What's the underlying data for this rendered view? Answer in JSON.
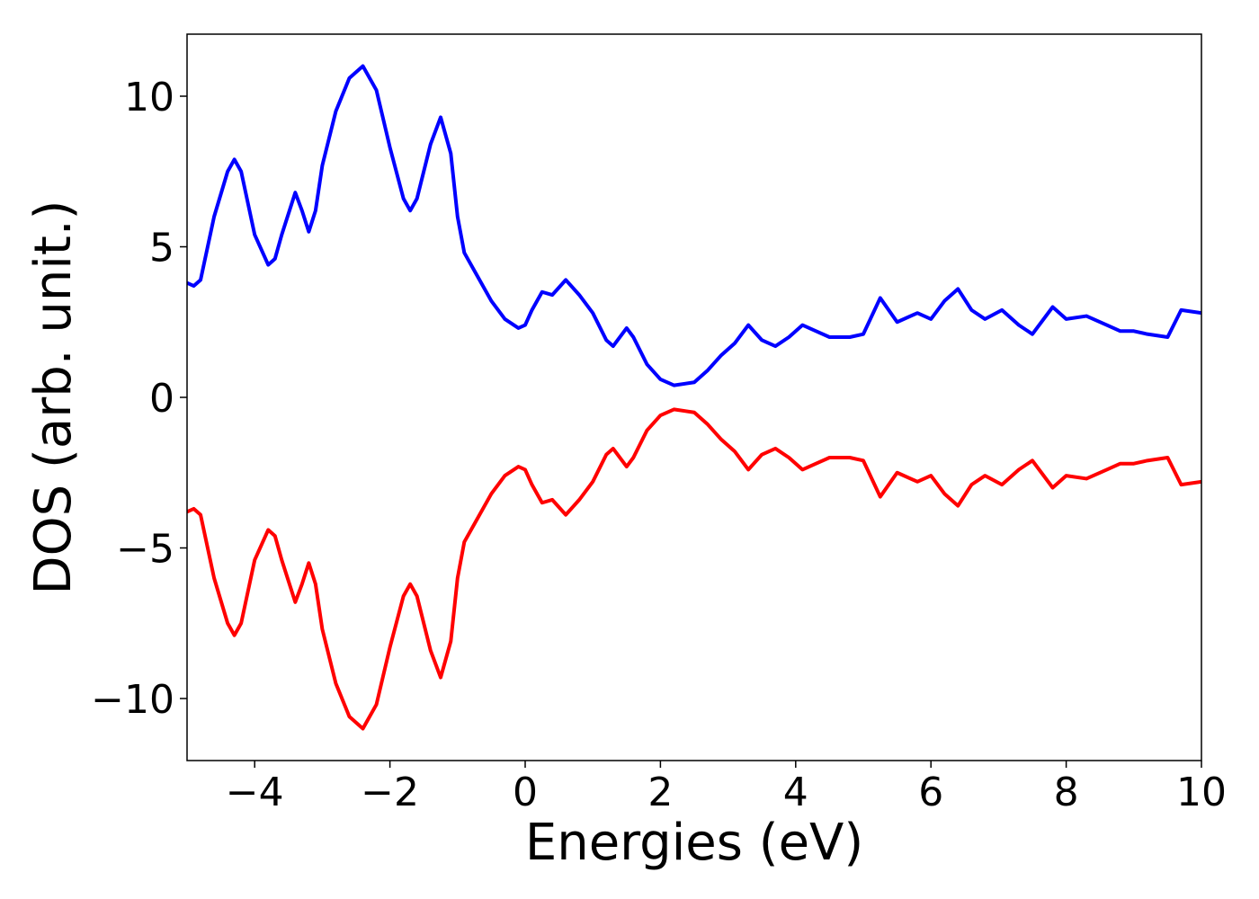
{
  "chart_data": {
    "type": "line",
    "xlabel": "Energies (eV)",
    "ylabel": "DOS (arb. unit.)",
    "x": [
      -5,
      -4.9,
      -4.8,
      -4.6,
      -4.4,
      -4.3,
      -4.2,
      -4.0,
      -3.8,
      -3.7,
      -3.6,
      -3.4,
      -3.3,
      -3.2,
      -3.1,
      -3.0,
      -2.8,
      -2.6,
      -2.4,
      -2.2,
      -2.0,
      -1.8,
      -1.7,
      -1.6,
      -1.4,
      -1.25,
      -1.1,
      -1.0,
      -0.9,
      -0.7,
      -0.5,
      -0.3,
      -0.1,
      0,
      0.1,
      0.25,
      0.4,
      0.6,
      0.8,
      1.0,
      1.2,
      1.3,
      1.5,
      1.6,
      1.8,
      2.0,
      2.2,
      2.5,
      2.7,
      2.9,
      3.1,
      3.3,
      3.5,
      3.7,
      3.9,
      4.1,
      4.3,
      4.5,
      4.8,
      5.0,
      5.25,
      5.5,
      5.8,
      6.0,
      6.2,
      6.4,
      6.6,
      6.8,
      7.05,
      7.3,
      7.5,
      7.8,
      8.0,
      8.3,
      8.6,
      8.8,
      9.0,
      9.2,
      9.5,
      9.7,
      10
    ],
    "series": [
      {
        "color": "#0000ff",
        "values": [
          3.8,
          3.7,
          3.9,
          6.0,
          7.5,
          7.9,
          7.5,
          5.4,
          4.4,
          4.6,
          5.4,
          6.8,
          6.2,
          5.5,
          6.2,
          7.7,
          9.5,
          10.6,
          11.0,
          10.2,
          8.3,
          6.6,
          6.2,
          6.6,
          8.4,
          9.3,
          8.1,
          6.0,
          4.8,
          4.0,
          3.2,
          2.6,
          2.3,
          2.4,
          2.9,
          3.5,
          3.4,
          3.9,
          3.4,
          2.8,
          1.9,
          1.7,
          2.3,
          2.0,
          1.1,
          0.6,
          0.4,
          0.5,
          0.9,
          1.4,
          1.8,
          2.4,
          1.9,
          1.7,
          2.0,
          2.4,
          2.2,
          2.0,
          2.0,
          2.1,
          3.3,
          2.5,
          2.8,
          2.6,
          3.2,
          3.6,
          2.9,
          2.6,
          2.9,
          2.4,
          2.1,
          3.0,
          2.6,
          2.7,
          2.4,
          2.2,
          2.2,
          2.1,
          2.0,
          2.9,
          2.8
        ]
      },
      {
        "color": "#ff0000",
        "values": [
          -3.8,
          -3.7,
          -3.9,
          -6.0,
          -7.5,
          -7.9,
          -7.5,
          -5.4,
          -4.4,
          -4.6,
          -5.4,
          -6.8,
          -6.2,
          -5.5,
          -6.2,
          -7.7,
          -9.5,
          -10.6,
          -11.0,
          -10.2,
          -8.3,
          -6.6,
          -6.2,
          -6.6,
          -8.4,
          -9.3,
          -8.1,
          -6.0,
          -4.8,
          -4.0,
          -3.2,
          -2.6,
          -2.3,
          -2.4,
          -2.9,
          -3.5,
          -3.4,
          -3.9,
          -3.4,
          -2.8,
          -1.9,
          -1.7,
          -2.3,
          -2.0,
          -1.1,
          -0.6,
          -0.4,
          -0.5,
          -0.9,
          -1.4,
          -1.8,
          -2.4,
          -1.9,
          -1.7,
          -2.0,
          -2.4,
          -2.2,
          -2.0,
          -2.0,
          -2.1,
          -3.3,
          -2.5,
          -2.8,
          -2.6,
          -3.2,
          -3.6,
          -2.9,
          -2.6,
          -2.9,
          -2.4,
          -2.1,
          -3.0,
          -2.6,
          -2.7,
          -2.4,
          -2.2,
          -2.2,
          -2.1,
          -2.0,
          -2.9,
          -2.8
        ]
      }
    ],
    "xlim": [
      -5,
      10
    ],
    "xticks": [
      {
        "value": -4,
        "label": "−4"
      },
      {
        "value": -2,
        "label": "−2"
      },
      0,
      2,
      4,
      6,
      8,
      10
    ],
    "ylim": [
      -12.06,
      12.06
    ],
    "yticks": [
      {
        "value": -10,
        "label": "−10"
      },
      {
        "value": -5,
        "label": "−5"
      },
      0,
      5,
      10
    ]
  }
}
